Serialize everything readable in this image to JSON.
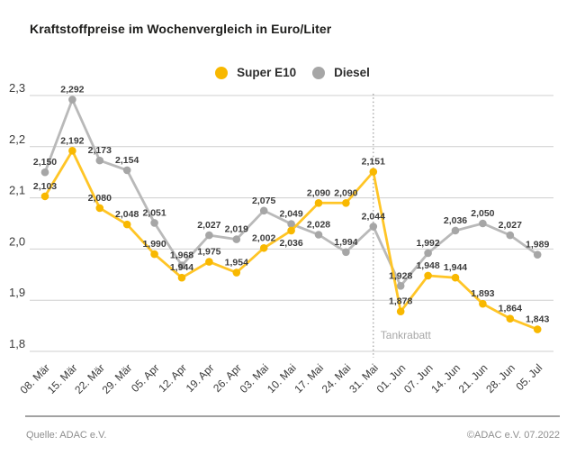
{
  "title": "Kraftstoffpreise im Wochenvergleich in Euro/Liter",
  "chart_data": {
    "type": "line",
    "title": "Kraftstoffpreise im Wochenvergleich in Euro/Liter",
    "categories": [
      "08. Mär",
      "15. Mär",
      "22. Mär",
      "29. Mär",
      "05. Apr",
      "12. Apr",
      "19. Apr",
      "26. Apr",
      "03. Mai",
      "10. Mai",
      "17. Mai",
      "24. Mai",
      "31. Mai",
      "01. Jun",
      "07. Jun",
      "14. Jun",
      "21. Jun",
      "28. Jun",
      "05. Jul"
    ],
    "series": [
      {
        "name": "Super E10",
        "line_color": "#FFC526",
        "dot_color": "#F8B800",
        "values": [
          2.103,
          2.192,
          2.08,
          2.048,
          1.99,
          1.944,
          1.975,
          1.954,
          2.002,
          2.036,
          2.09,
          2.09,
          2.151,
          1.878,
          1.948,
          1.944,
          1.893,
          1.864,
          1.843
        ]
      },
      {
        "name": "Diesel",
        "line_color": "#B9B9B9",
        "dot_color": "#A6A6A6",
        "values": [
          2.15,
          2.292,
          2.173,
          2.154,
          2.051,
          1.968,
          2.027,
          2.019,
          2.075,
          2.049,
          2.028,
          1.994,
          2.044,
          1.928,
          1.992,
          2.036,
          2.05,
          2.027,
          1.989
        ]
      }
    ],
    "ylim": [
      1.8,
      2.3
    ],
    "ytick_step": 0.1,
    "ytick_labels": [
      "2,3",
      "2,2",
      "2,1",
      "2,0",
      "1,9",
      "1,8"
    ],
    "grid": "horizontal",
    "legend_position": "top-center",
    "decimal_separator": ",",
    "annotation": {
      "label": "Tankrabatt",
      "category": "31. Mai"
    }
  },
  "footer": {
    "source": "Quelle: ADAC e.V.",
    "copyright": "©ADAC e.V.  07.2022"
  }
}
